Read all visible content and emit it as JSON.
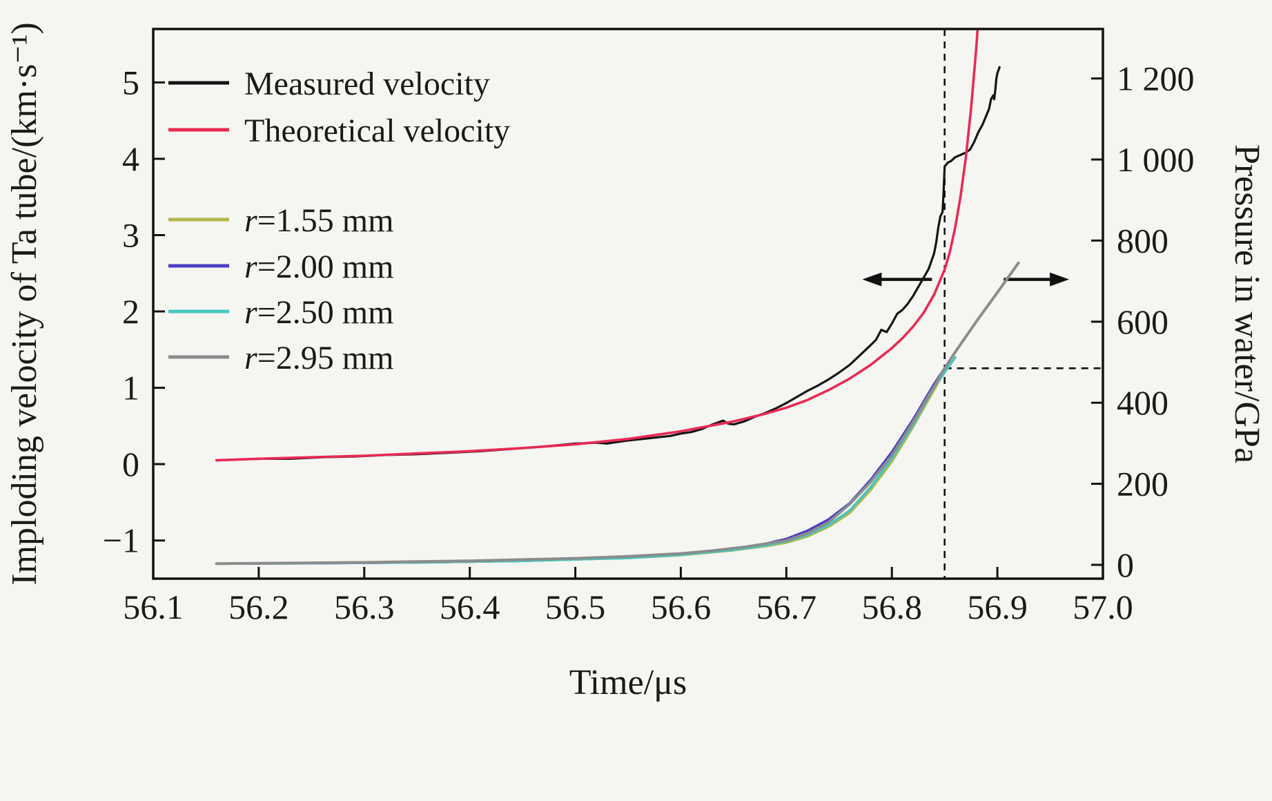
{
  "figure": {
    "background": "#f5f5f2",
    "frame_color": "#111111",
    "text_color": "#1a1a1a"
  },
  "chart_data": {
    "type": "line",
    "title": "",
    "xlabel": "Time/μs",
    "ylabel_left": "Imploding velocity of Ta tube/(km·s⁻¹)",
    "ylabel_right": "Pressure in water/GPa",
    "xlim": [
      56.1,
      57.0
    ],
    "ylim_left": [
      -1.5,
      5.7
    ],
    "ylim_right": [
      -34,
      1322
    ],
    "grid": false,
    "legend_position": "upper-left-inside",
    "x_ticks": [
      56.1,
      56.2,
      56.3,
      56.4,
      56.5,
      56.6,
      56.7,
      56.8,
      56.9,
      57.0
    ],
    "x_tick_labels": [
      "56.1",
      "56.2",
      "56.3",
      "56.4",
      "56.5",
      "56.6",
      "56.7",
      "56.8",
      "56.9",
      "57.0"
    ],
    "y_ticks_left": [
      -1,
      0,
      1,
      2,
      3,
      4,
      5
    ],
    "y_tick_labels_left": [
      "−1",
      "0",
      "1",
      "2",
      "3",
      "4",
      "5"
    ],
    "y_ticks_right": [
      0,
      200,
      400,
      600,
      800,
      1000,
      1200
    ],
    "y_tick_labels_right": [
      "0",
      "200",
      "400",
      "600",
      "800",
      "1 000",
      "1 200"
    ],
    "series": [
      {
        "id": "measured-velocity",
        "name": "Measured velocity",
        "axis": "left",
        "color": "#141414",
        "width": 3.2,
        "points": [
          [
            56.16,
            0.05
          ],
          [
            56.18,
            0.06
          ],
          [
            56.2,
            0.07
          ],
          [
            56.23,
            0.07
          ],
          [
            56.26,
            0.09
          ],
          [
            56.29,
            0.1
          ],
          [
            56.32,
            0.12
          ],
          [
            56.35,
            0.13
          ],
          [
            56.38,
            0.15
          ],
          [
            56.41,
            0.17
          ],
          [
            56.44,
            0.2
          ],
          [
            56.47,
            0.23
          ],
          [
            56.5,
            0.27
          ],
          [
            56.52,
            0.28
          ],
          [
            56.53,
            0.27
          ],
          [
            56.55,
            0.31
          ],
          [
            56.57,
            0.34
          ],
          [
            56.59,
            0.37
          ],
          [
            56.6,
            0.4
          ],
          [
            56.61,
            0.42
          ],
          [
            56.62,
            0.46
          ],
          [
            56.63,
            0.52
          ],
          [
            56.64,
            0.57
          ],
          [
            56.645,
            0.53
          ],
          [
            56.65,
            0.52
          ],
          [
            56.66,
            0.56
          ],
          [
            56.67,
            0.62
          ],
          [
            56.68,
            0.67
          ],
          [
            56.69,
            0.73
          ],
          [
            56.7,
            0.8
          ],
          [
            56.71,
            0.88
          ],
          [
            56.72,
            0.96
          ],
          [
            56.73,
            1.03
          ],
          [
            56.74,
            1.11
          ],
          [
            56.75,
            1.2
          ],
          [
            56.76,
            1.3
          ],
          [
            56.77,
            1.43
          ],
          [
            56.78,
            1.56
          ],
          [
            56.785,
            1.63
          ],
          [
            56.79,
            1.76
          ],
          [
            56.795,
            1.73
          ],
          [
            56.8,
            1.84
          ],
          [
            56.805,
            1.97
          ],
          [
            56.81,
            2.02
          ],
          [
            56.815,
            2.1
          ],
          [
            56.82,
            2.2
          ],
          [
            56.825,
            2.32
          ],
          [
            56.83,
            2.44
          ],
          [
            56.835,
            2.56
          ],
          [
            56.84,
            2.76
          ],
          [
            56.842,
            2.9
          ],
          [
            56.844,
            3.1
          ],
          [
            56.846,
            3.25
          ],
          [
            56.848,
            3.3
          ],
          [
            56.849,
            3.55
          ],
          [
            56.85,
            3.9
          ],
          [
            56.853,
            3.95
          ],
          [
            56.856,
            3.97
          ],
          [
            56.86,
            4.02
          ],
          [
            56.865,
            4.05
          ],
          [
            56.87,
            4.08
          ],
          [
            56.874,
            4.12
          ],
          [
            56.878,
            4.22
          ],
          [
            56.882,
            4.35
          ],
          [
            56.886,
            4.45
          ],
          [
            56.889,
            4.55
          ],
          [
            56.892,
            4.65
          ],
          [
            56.894,
            4.78
          ],
          [
            56.896,
            4.83
          ],
          [
            56.897,
            4.78
          ],
          [
            56.898,
            4.9
          ],
          [
            56.899,
            5.05
          ],
          [
            56.9,
            5.12
          ],
          [
            56.902,
            5.2
          ]
        ]
      },
      {
        "id": "theoretical-velocity",
        "name": "Theoretical velocity",
        "axis": "left",
        "color": "#e82a55",
        "width": 3.6,
        "points": [
          [
            56.16,
            0.05
          ],
          [
            56.2,
            0.07
          ],
          [
            56.25,
            0.09
          ],
          [
            56.3,
            0.11
          ],
          [
            56.35,
            0.14
          ],
          [
            56.4,
            0.17
          ],
          [
            56.45,
            0.21
          ],
          [
            56.5,
            0.26
          ],
          [
            56.55,
            0.33
          ],
          [
            56.6,
            0.43
          ],
          [
            56.65,
            0.56
          ],
          [
            56.68,
            0.66
          ],
          [
            56.7,
            0.74
          ],
          [
            56.72,
            0.84
          ],
          [
            56.74,
            0.97
          ],
          [
            56.76,
            1.12
          ],
          [
            56.78,
            1.3
          ],
          [
            56.8,
            1.52
          ],
          [
            56.81,
            1.65
          ],
          [
            56.82,
            1.8
          ],
          [
            56.83,
            1.98
          ],
          [
            56.84,
            2.22
          ],
          [
            56.85,
            2.55
          ],
          [
            56.855,
            2.78
          ],
          [
            56.86,
            3.1
          ],
          [
            56.865,
            3.5
          ],
          [
            56.87,
            4.0
          ],
          [
            56.875,
            4.65
          ],
          [
            56.88,
            5.45
          ],
          [
            56.882,
            5.85
          ]
        ]
      },
      {
        "id": "r-1-55-mm",
        "name": "r=1.55 mm",
        "axis": "right",
        "color": "#b2b84a",
        "width": 3.6,
        "points": [
          [
            56.16,
            3
          ],
          [
            56.25,
            4
          ],
          [
            56.35,
            6
          ],
          [
            56.45,
            10
          ],
          [
            56.55,
            17
          ],
          [
            56.6,
            24
          ],
          [
            56.65,
            36
          ],
          [
            56.68,
            46
          ],
          [
            56.7,
            55
          ],
          [
            56.72,
            70
          ],
          [
            56.74,
            94
          ],
          [
            56.76,
            128
          ],
          [
            56.78,
            185
          ],
          [
            56.8,
            255
          ],
          [
            56.82,
            340
          ],
          [
            56.84,
            432
          ],
          [
            56.85,
            478
          ]
        ]
      },
      {
        "id": "r-2-00-mm",
        "name": "r=2.00 mm",
        "axis": "right",
        "color": "#4a3ec4",
        "width": 3.6,
        "points": [
          [
            56.16,
            3
          ],
          [
            56.25,
            4
          ],
          [
            56.35,
            6
          ],
          [
            56.45,
            10
          ],
          [
            56.55,
            18
          ],
          [
            56.6,
            26
          ],
          [
            56.65,
            40
          ],
          [
            56.68,
            52
          ],
          [
            56.7,
            64
          ],
          [
            56.72,
            84
          ],
          [
            56.74,
            112
          ],
          [
            56.76,
            152
          ],
          [
            56.78,
            210
          ],
          [
            56.8,
            278
          ],
          [
            56.82,
            358
          ],
          [
            56.84,
            446
          ],
          [
            56.855,
            505
          ]
        ]
      },
      {
        "id": "r-2-50-mm",
        "name": "r=2.50 mm",
        "axis": "right",
        "color": "#46c6bf",
        "width": 3.6,
        "points": [
          [
            56.16,
            3
          ],
          [
            56.25,
            4
          ],
          [
            56.35,
            6
          ],
          [
            56.45,
            10
          ],
          [
            56.55,
            17
          ],
          [
            56.6,
            25
          ],
          [
            56.65,
            37
          ],
          [
            56.68,
            48
          ],
          [
            56.7,
            58
          ],
          [
            56.72,
            74
          ],
          [
            56.74,
            98
          ],
          [
            56.76,
            134
          ],
          [
            56.78,
            192
          ],
          [
            56.8,
            262
          ],
          [
            56.82,
            345
          ],
          [
            56.84,
            438
          ],
          [
            56.86,
            512
          ]
        ]
      },
      {
        "id": "r-2-95-mm",
        "name": "r=2.95 mm",
        "axis": "right",
        "color": "#8c8c8c",
        "width": 4.0,
        "points": [
          [
            56.16,
            3
          ],
          [
            56.2,
            4
          ],
          [
            56.25,
            5
          ],
          [
            56.3,
            6
          ],
          [
            56.35,
            8
          ],
          [
            56.4,
            10
          ],
          [
            56.45,
            13
          ],
          [
            56.5,
            16
          ],
          [
            56.55,
            21
          ],
          [
            56.6,
            28
          ],
          [
            56.63,
            35
          ],
          [
            56.66,
            44
          ],
          [
            56.69,
            56
          ],
          [
            56.7,
            60
          ],
          [
            56.72,
            78
          ],
          [
            56.74,
            105
          ],
          [
            56.76,
            150
          ],
          [
            56.78,
            205
          ],
          [
            56.8,
            270
          ],
          [
            56.82,
            352
          ],
          [
            56.84,
            440
          ],
          [
            56.85,
            485
          ],
          [
            56.86,
            525
          ],
          [
            56.88,
            600
          ],
          [
            56.9,
            672
          ],
          [
            56.92,
            745
          ]
        ]
      }
    ],
    "legend": {
      "groups": [
        {
          "entries": [
            {
              "series_index": 0,
              "italic": "",
              "text": "Measured velocity"
            },
            {
              "series_index": 1,
              "italic": "",
              "text": "Theoretical velocity"
            }
          ]
        },
        {
          "entries": [
            {
              "series_index": 2,
              "italic": "r",
              "text": "=1.55 mm"
            },
            {
              "series_index": 3,
              "italic": "r",
              "text": "=2.00 mm"
            },
            {
              "series_index": 4,
              "italic": "r",
              "text": "=2.50 mm"
            },
            {
              "series_index": 5,
              "italic": "r",
              "text": "=2.95 mm"
            }
          ]
        }
      ]
    },
    "annotations": {
      "vline_dashed": {
        "x": 56.85
      },
      "hline_dashed": {
        "y_right": 485,
        "x_from": 56.85,
        "x_to": 57.0
      },
      "arrow_left": {
        "x_tail": 56.838,
        "x_head": 56.772,
        "y_left": 2.42
      },
      "arrow_right": {
        "x_tail": 56.906,
        "x_head": 56.968,
        "y_left": 2.42
      }
    }
  }
}
